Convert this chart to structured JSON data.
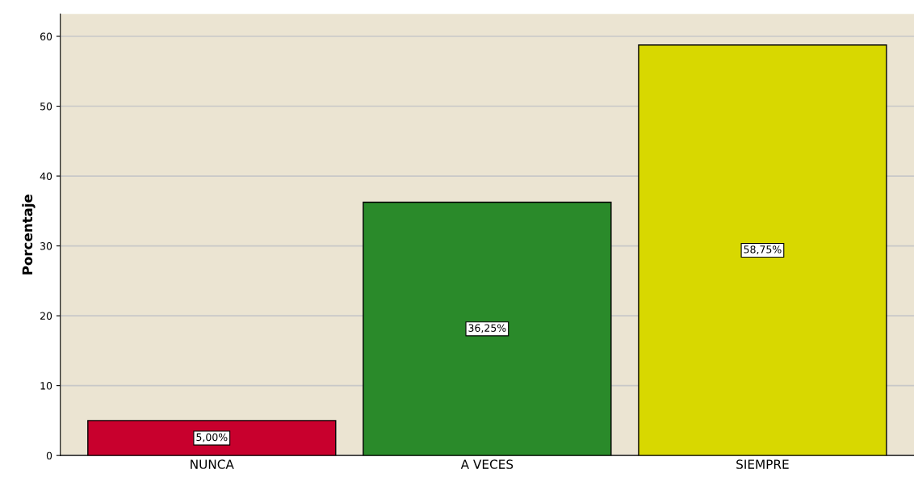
{
  "chart_data": {
    "type": "bar",
    "ylabel": "Porcentaje",
    "categories": [
      "NUNCA",
      "A VECES",
      "SIEMPRE"
    ],
    "values": [
      5.0,
      36.25,
      58.75
    ],
    "colors": [
      "#c8002d",
      "#2a8a2a",
      "#d8d800"
    ],
    "value_labels": [
      "5,00%",
      "36,25%",
      "58,75%"
    ],
    "ylim": [
      0,
      63.2
    ],
    "yticks": [
      0,
      10,
      20,
      30,
      40,
      50,
      60
    ],
    "grid": "y"
  }
}
